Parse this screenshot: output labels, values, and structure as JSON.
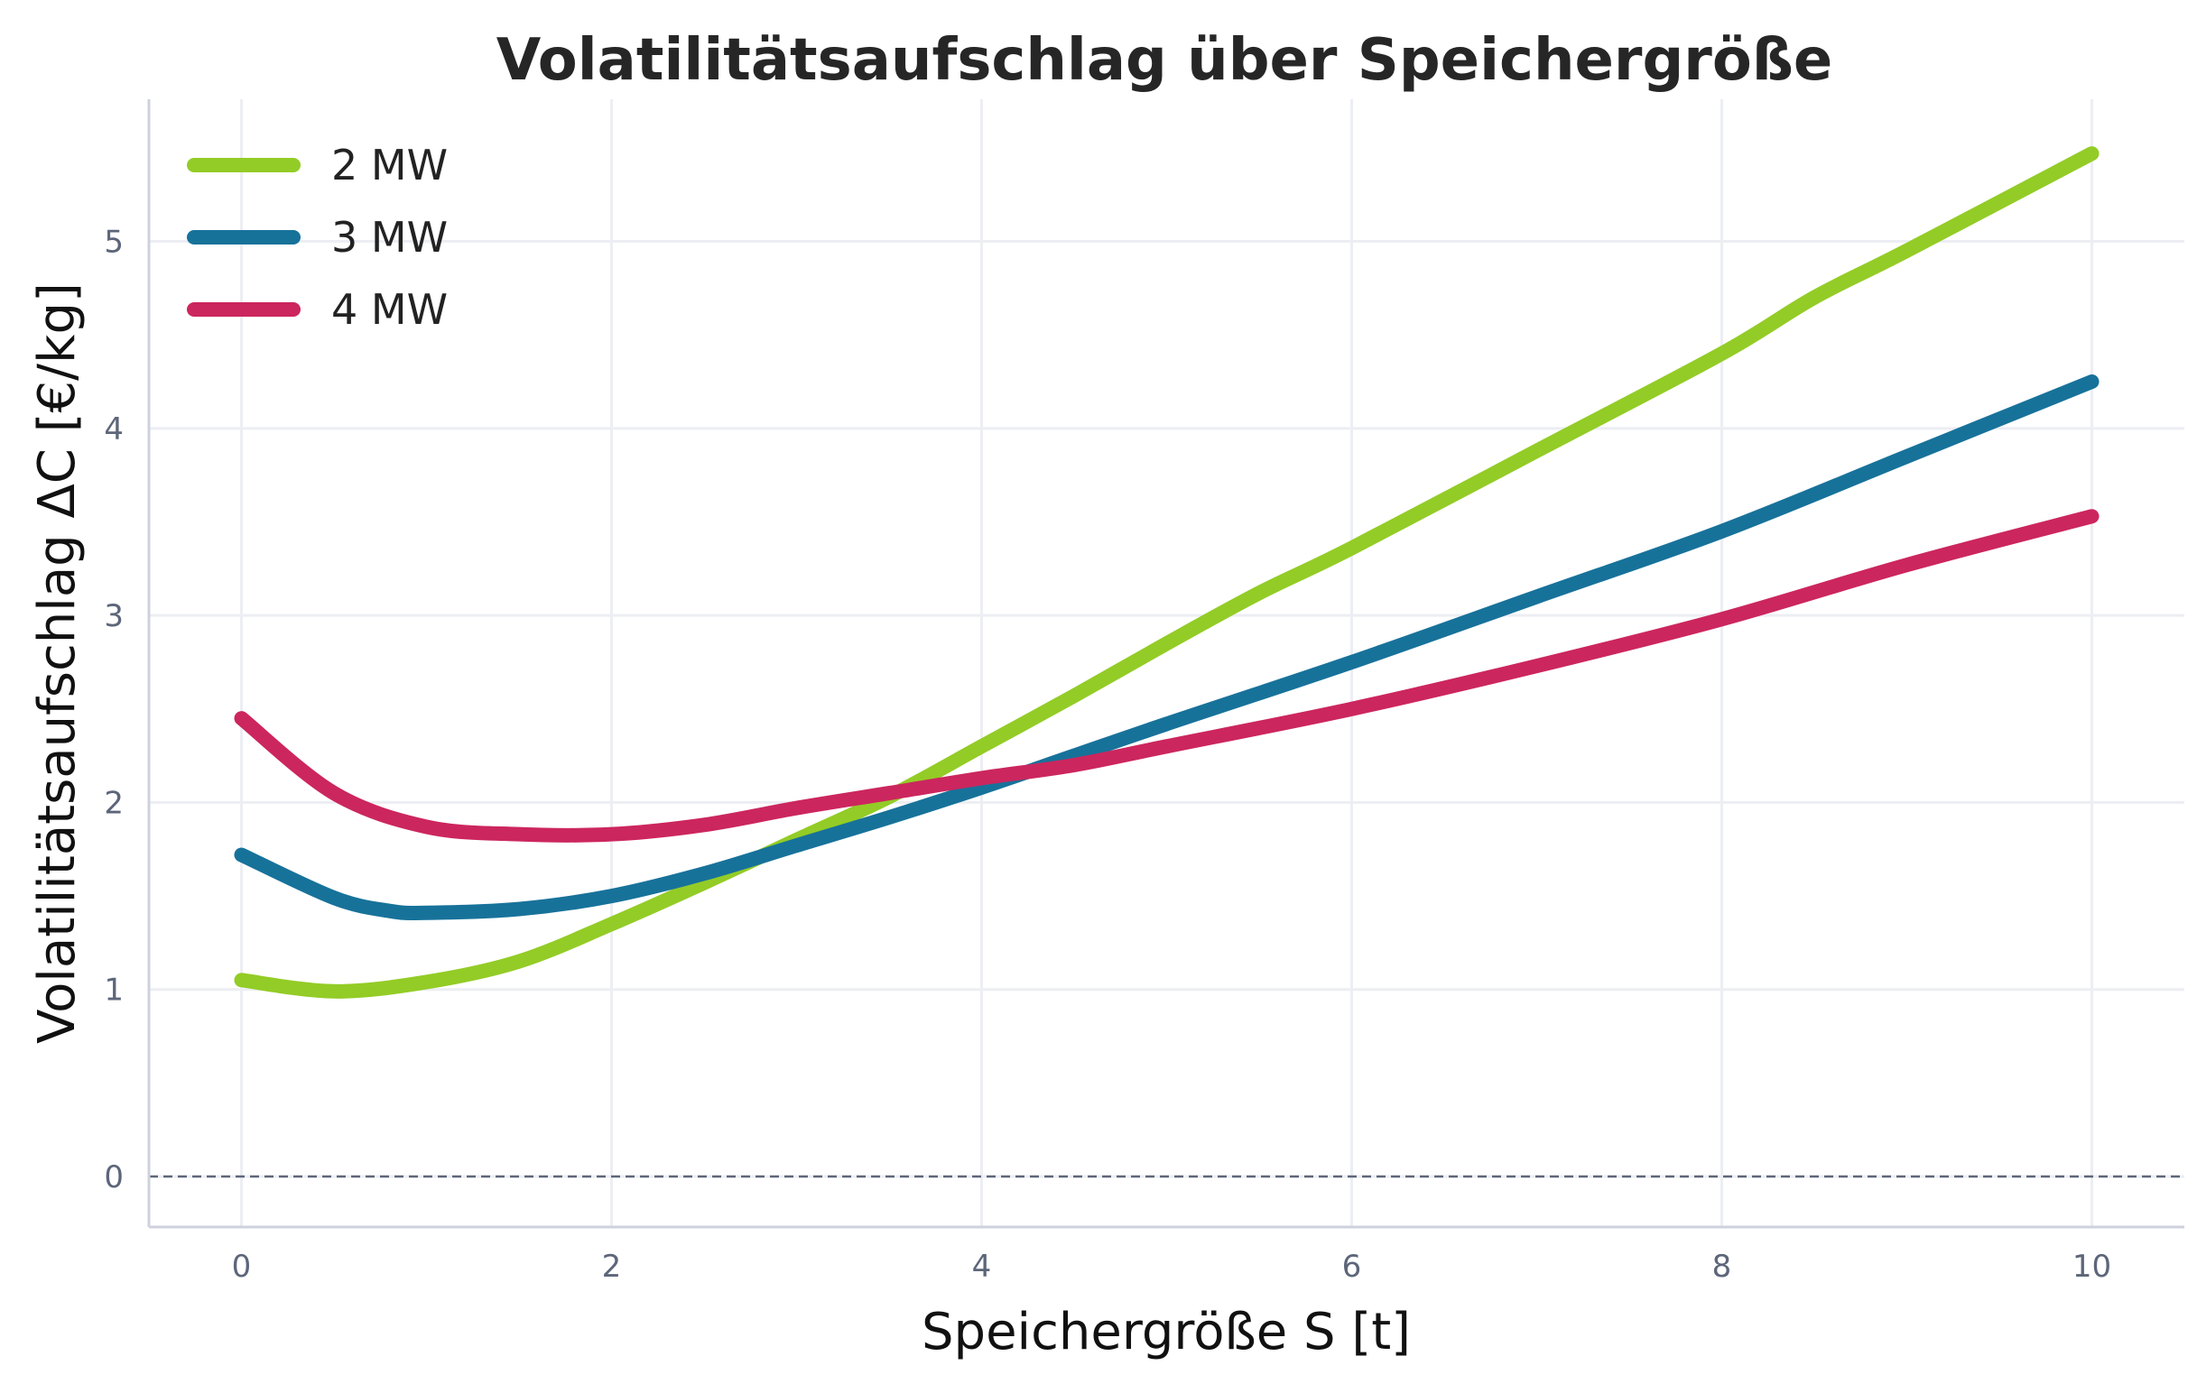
{
  "chart_data": {
    "type": "line",
    "title": "Volatilitätsaufschlag über Speichergröße",
    "xlabel": "Speichergröße S [t]",
    "ylabel": "Volatilitätsaufschlag ΔC [€/kg]",
    "xlim": [
      -0.5,
      10.5
    ],
    "ylim": [
      -0.27,
      5.76
    ],
    "xticks": [
      0,
      2,
      4,
      6,
      8,
      10
    ],
    "yticks": [
      0,
      1,
      2,
      3,
      4,
      5
    ],
    "grid": true,
    "legend_position": "top-left",
    "reference_line": {
      "y": 0,
      "style": "dashed",
      "color": "#5d6679"
    },
    "series": [
      {
        "name": "2 MW",
        "color": "#93cc26",
        "x": [
          0,
          0.5,
          1,
          1.5,
          2,
          2.5,
          3,
          3.5,
          4,
          4.5,
          5,
          5.5,
          6,
          7,
          8,
          8.5,
          9,
          10
        ],
        "y": [
          1.05,
          0.99,
          1.04,
          1.15,
          1.35,
          1.57,
          1.8,
          2.03,
          2.3,
          2.57,
          2.85,
          3.12,
          3.36,
          3.88,
          4.4,
          4.7,
          4.95,
          5.47
        ]
      },
      {
        "name": "3 MW",
        "color": "#17729a",
        "x": [
          0,
          0.5,
          0.8,
          1,
          1.5,
          2,
          2.5,
          3,
          3.5,
          4,
          4.5,
          5,
          6,
          7,
          8,
          9,
          10
        ],
        "y": [
          1.72,
          1.49,
          1.42,
          1.41,
          1.43,
          1.5,
          1.62,
          1.77,
          1.92,
          2.08,
          2.25,
          2.42,
          2.75,
          3.1,
          3.45,
          3.85,
          4.25
        ]
      },
      {
        "name": "4 MW",
        "color": "#cc265e",
        "x": [
          0,
          0.5,
          1,
          1.5,
          2,
          2.5,
          3,
          3.5,
          4,
          4.5,
          5,
          6,
          7,
          8,
          9,
          10
        ],
        "y": [
          2.45,
          2.05,
          1.87,
          1.83,
          1.83,
          1.88,
          1.97,
          2.05,
          2.13,
          2.2,
          2.3,
          2.5,
          2.73,
          2.98,
          3.27,
          3.53
        ]
      }
    ]
  }
}
